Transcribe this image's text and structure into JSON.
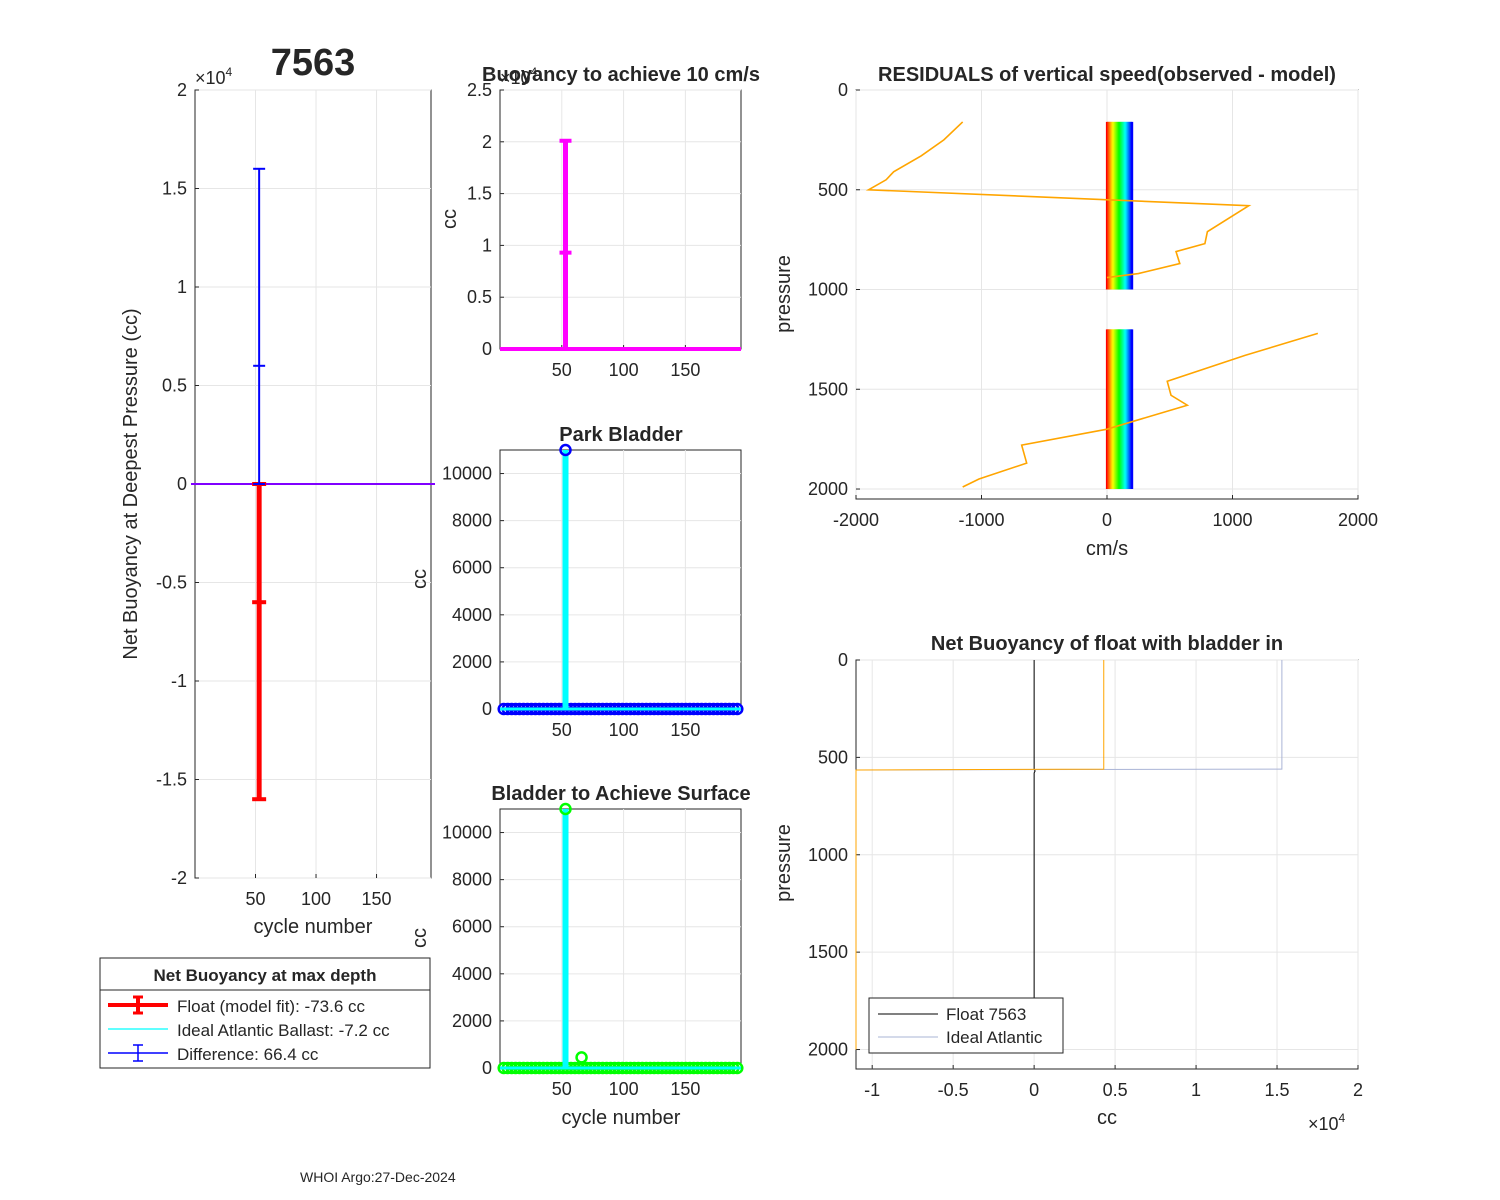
{
  "figure": {
    "float_id": "7563",
    "footer": "WHOI Argo:27-Dec-2024"
  },
  "chart_data": [
    {
      "id": "net_buoyancy",
      "type": "errorbar",
      "title": "7563",
      "xlabel": "cycle number",
      "ylabel": "Net Buoyancy at Deepest Pressure (cc)",
      "xlim": [
        0,
        195
      ],
      "ylim": [
        -20000,
        20000
      ],
      "xticks": [
        50,
        100,
        150
      ],
      "yticks": [
        -2,
        -1.5,
        -1,
        -0.5,
        0,
        0.5,
        1,
        1.5,
        2
      ],
      "yticklabels": [
        "-2",
        "-1.5",
        "-1",
        "-0.5",
        "0",
        "0.5",
        "1",
        "1.5",
        "2"
      ],
      "exponent_label": "×10",
      "exponent": "4",
      "series": [
        {
          "name": "Float (model fit)",
          "color": "#ff0000",
          "x": 53,
          "y": -6000,
          "lower": -16000,
          "upper": 0
        },
        {
          "name": "Difference",
          "color": "#0000ff",
          "x": 53,
          "y": 6000,
          "lower": 0,
          "upper": 16000
        },
        {
          "name": "Ideal Atlantic Ballast",
          "color": "#00ffff",
          "y": -7.2
        }
      ],
      "legend": {
        "title": "Net Buoyancy at max depth",
        "entries": [
          {
            "label": "Float (model fit): -73.6 cc",
            "color": "#ff0000",
            "style": "errorbar-thick"
          },
          {
            "label": "Ideal Atlantic Ballast:  -7.2 cc",
            "color": "#00ffff",
            "style": "line"
          },
          {
            "label": "Difference:  66.4 cc",
            "color": "#0000ff",
            "style": "errorbar"
          }
        ]
      }
    },
    {
      "id": "buoyancy_10cms",
      "type": "errorbar",
      "title": "Buoyancy to achieve 10 cm/s",
      "ylabel": "cc",
      "xlim": [
        0,
        195
      ],
      "ylim": [
        0,
        25000
      ],
      "xticks": [
        50,
        100,
        150
      ],
      "yticks": [
        0,
        0.5,
        1,
        1.5,
        2,
        2.5
      ],
      "yticklabels": [
        "0",
        "0.5",
        "1",
        "1.5",
        "2",
        "2.5"
      ],
      "exponent_label": "×10",
      "exponent": "4",
      "color": "#ff00ff",
      "baseline": 0,
      "spike": {
        "x": 53,
        "y": 9300,
        "lower": 0,
        "upper": 20100
      }
    },
    {
      "id": "park_bladder",
      "type": "stem",
      "title": "Park Bladder",
      "ylabel": "cc",
      "xlim": [
        0,
        195
      ],
      "ylim": [
        0,
        11000
      ],
      "xticks": [
        50,
        100,
        150
      ],
      "yticks": [
        0,
        2000,
        4000,
        6000,
        8000,
        10000
      ],
      "marker_color": "#0000ff",
      "line_color": "#00ffff",
      "baseline": 0,
      "spike": {
        "x": 53,
        "y": 11000
      }
    },
    {
      "id": "bladder_surface",
      "type": "stem",
      "title": "Bladder to Achieve Surface",
      "xlabel": "cycle number",
      "ylabel": "cc",
      "xlim": [
        0,
        195
      ],
      "ylim": [
        0,
        11000
      ],
      "xticks": [
        50,
        100,
        150
      ],
      "yticks": [
        0,
        2000,
        4000,
        6000,
        8000,
        10000
      ],
      "marker_color": "#00ff00",
      "line_color": "#00ffff",
      "baseline": 0,
      "spike": {
        "x": 53,
        "y": 11000
      },
      "bump": {
        "x": 66,
        "y": 450
      }
    },
    {
      "id": "residuals",
      "type": "line",
      "title": "RESIDUALS of vertical speed(observed - model)",
      "xlabel": "cm/s",
      "ylabel": "pressure",
      "xlim": [
        -2000,
        2000
      ],
      "ylim": [
        0,
        2050
      ],
      "y_reversed": true,
      "xticks": [
        -2000,
        -1000,
        0,
        1000,
        2000
      ],
      "yticks": [
        0,
        500,
        1000,
        1500,
        2000
      ],
      "orange_color": "#ffa500",
      "orange_line": {
        "x": [
          -1150,
          -1300,
          -1480,
          -1700,
          -1760,
          -1900,
          1130,
          800,
          780,
          550,
          580,
          250,
          0
        ],
        "y": [
          160,
          250,
          330,
          410,
          450,
          500,
          580,
          710,
          770,
          810,
          870,
          920,
          940
        ]
      },
      "orange_line_2": {
        "x": [
          1680,
          1100,
          480,
          510,
          640,
          0,
          -680,
          -640,
          -1020,
          -1150
        ],
        "y": [
          1220,
          1330,
          1460,
          1530,
          1580,
          1700,
          1780,
          1870,
          1950,
          1990
        ]
      },
      "rainbow_band": {
        "x_start": 0,
        "x_end": 200,
        "segments": [
          [
            160,
            1000
          ],
          [
            1200,
            2000
          ]
        ]
      }
    },
    {
      "id": "net_buoyancy_bladder_in",
      "type": "line",
      "title": "Net Buoyancy of float with bladder in",
      "xlabel": "cc",
      "ylabel": "pressure",
      "xlim": [
        -11000,
        20000
      ],
      "ylim": [
        0,
        2100
      ],
      "y_reversed": true,
      "xticks": [
        -1,
        -0.5,
        0,
        0.5,
        1,
        1.5,
        2
      ],
      "xticklabels": [
        "-1",
        "-0.5",
        "0",
        "0.5",
        "1",
        "1.5",
        "2"
      ],
      "yticks": [
        0,
        500,
        1000,
        1500,
        2000
      ],
      "exponent_label": "×10",
      "exponent": "4",
      "series": [
        {
          "name": "Float 7563",
          "color": "#000000",
          "x": [
            0,
            0,
            60,
            0,
            0
          ],
          "y": [
            0,
            560,
            570,
            580,
            2000
          ]
        },
        {
          "name": "Ideal Atlantic",
          "color": "#aab4d6",
          "x": [
            15300,
            15300,
            -11000,
            -11000
          ],
          "y": [
            0,
            560,
            565,
            2000
          ]
        },
        {
          "name": "orange",
          "color": "#ffa500",
          "x": [
            4300,
            4300,
            -11000,
            -11000
          ],
          "y": [
            0,
            560,
            565,
            2000
          ]
        }
      ],
      "legend": {
        "entries": [
          {
            "label": "Float 7563",
            "color": "#000000"
          },
          {
            "label": "Ideal Atlantic",
            "color": "#aab4d6"
          }
        ]
      }
    }
  ]
}
